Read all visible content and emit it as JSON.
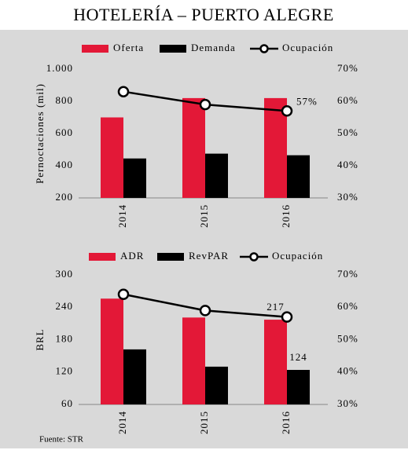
{
  "title": "HOTELERÍA – PUERTO ALEGRE",
  "source": "Fuente: STR",
  "chart_data": [
    {
      "type": "bar",
      "categories": [
        "2014",
        "2015",
        "2016"
      ],
      "ylabel": "Pernoctaciones (mil)",
      "ylim": [
        200,
        1000
      ],
      "yticks": [
        200,
        400,
        600,
        800,
        {
          "value": 1000,
          "label": "1.000"
        }
      ],
      "y2lim": [
        30,
        70
      ],
      "y2ticks": [
        {
          "value": 30,
          "label": "30%"
        },
        {
          "value": 40,
          "label": "40%"
        },
        {
          "value": 50,
          "label": "50%"
        },
        {
          "value": 60,
          "label": "60%"
        },
        {
          "value": 70,
          "label": "70%"
        }
      ],
      "grid": false,
      "series": [
        {
          "name": "Oferta",
          "type": "bar",
          "color": "#e31837",
          "values": [
            700,
            820,
            820
          ]
        },
        {
          "name": "Demanda",
          "type": "bar",
          "color": "#000000",
          "values": [
            445,
            475,
            465
          ]
        },
        {
          "name": "Ocupación",
          "type": "line",
          "axis": "y2",
          "color": "#000000",
          "values": [
            63,
            59,
            57
          ],
          "value_labels": [
            null,
            null,
            "57%"
          ]
        }
      ]
    },
    {
      "type": "bar",
      "categories": [
        "2014",
        "2015",
        "2016"
      ],
      "ylabel": "BRL",
      "ylim": [
        60,
        300
      ],
      "yticks": [
        60,
        120,
        180,
        240,
        300
      ],
      "y2lim": [
        30,
        70
      ],
      "y2ticks": [
        {
          "value": 30,
          "label": "30%"
        },
        {
          "value": 40,
          "label": "40%"
        },
        {
          "value": 50,
          "label": "50%"
        },
        {
          "value": 60,
          "label": "60%"
        },
        {
          "value": 70,
          "label": "70%"
        }
      ],
      "grid": false,
      "series": [
        {
          "name": "ADR",
          "type": "bar",
          "color": "#e31837",
          "values": [
            256,
            221,
            217
          ],
          "show_labels": [
            false,
            false,
            true
          ]
        },
        {
          "name": "RevPAR",
          "type": "bar",
          "color": "#000000",
          "values": [
            162,
            130,
            124
          ],
          "show_labels": [
            false,
            false,
            true
          ]
        },
        {
          "name": "Ocupación",
          "type": "line",
          "axis": "y2",
          "color": "#000000",
          "values": [
            64,
            59,
            57
          ]
        }
      ]
    }
  ]
}
